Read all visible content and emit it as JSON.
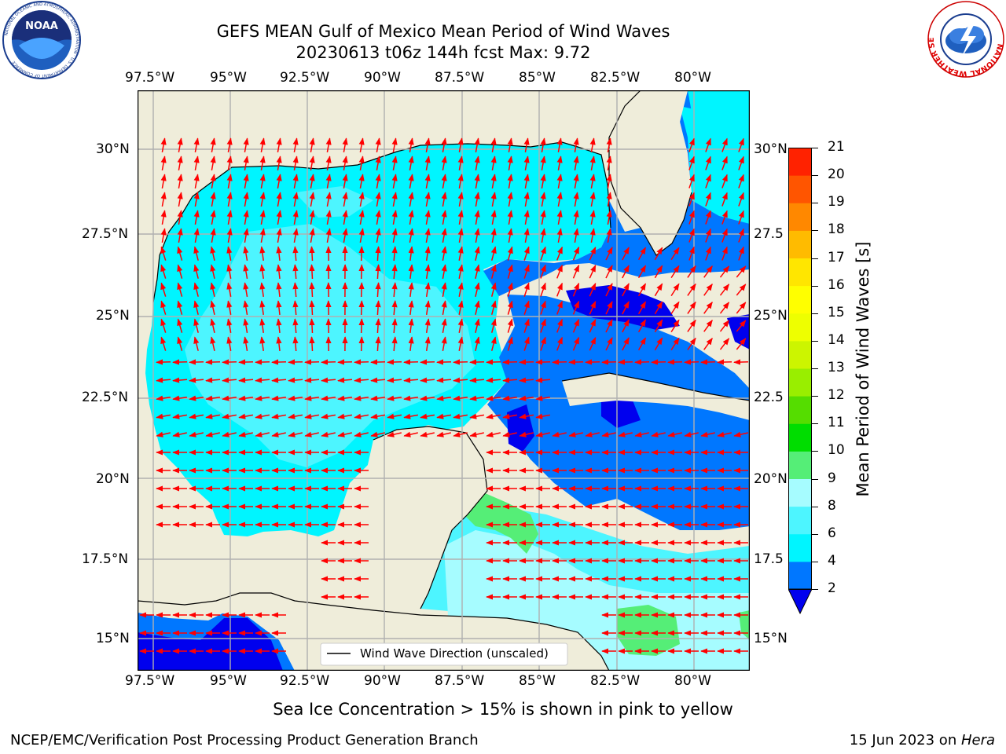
{
  "header": {
    "title_line1": "GEFS MEAN Gulf of Mexico Mean Period of Wind Waves",
    "title_line2": "20230613 t06z 144h fcst   Max: 9.72"
  },
  "logos": {
    "left": "NOAA",
    "left_ring": "NATIONAL OCEANIC AND ATMOSPHERIC ADMINISTRATION · U.S. DEPARTMENT OF COMMERCE",
    "right_ring": "NATIONAL WEATHER SERVICE"
  },
  "map": {
    "lon_labels": [
      "97.5°W",
      "95°W",
      "92.5°W",
      "90°W",
      "87.5°W",
      "85°W",
      "82.5°W",
      "80°W"
    ],
    "lat_labels_left": [
      "30°N",
      "27.5°N",
      "25°N",
      "22.5°N",
      "20°N",
      "17.5°N",
      "15°N"
    ],
    "lat_labels_right": [
      "30°N",
      "27.5",
      "25°N",
      "22.5",
      "20°N",
      "17.5",
      "15°N"
    ],
    "legend_label": "Wind Wave Direction (unscaled)",
    "colors": {
      "land": "#efedda",
      "band_2_4": "#0077ff",
      "band_0_2": "#0000ee",
      "band_4_6": "#00f5ff",
      "band_6_8": "#4df5ff",
      "band_8_9": "#a6fcff",
      "band_9_10": "#55ee77",
      "arrow": "#ff0000",
      "grid": "#b0b0b0"
    }
  },
  "colorbar": {
    "label": "Mean Period of Wind Waves [s]",
    "ticks": [
      "2",
      "4",
      "6",
      "8",
      "9",
      "10",
      "11",
      "12",
      "13",
      "14",
      "15",
      "16",
      "17",
      "18",
      "19",
      "20",
      "21"
    ],
    "colors": [
      "#0077ff",
      "#00f5ff",
      "#4df5ff",
      "#a6fcff",
      "#55ee77",
      "#00dd00",
      "#55dd00",
      "#99ee00",
      "#ccf500",
      "#eeff00",
      "#ffff00",
      "#ffe600",
      "#ffbb00",
      "#ff8800",
      "#ff5500",
      "#ff2200"
    ],
    "extend_color": "#0000ee"
  },
  "footer": {
    "note": "Sea Ice Concentration > 15% is shown in pink to yellow",
    "credit": "NCEP/EMC/Verification Post Processing Product Generation Branch",
    "date": "15 Jun 2023 on ",
    "host": "Hera"
  }
}
